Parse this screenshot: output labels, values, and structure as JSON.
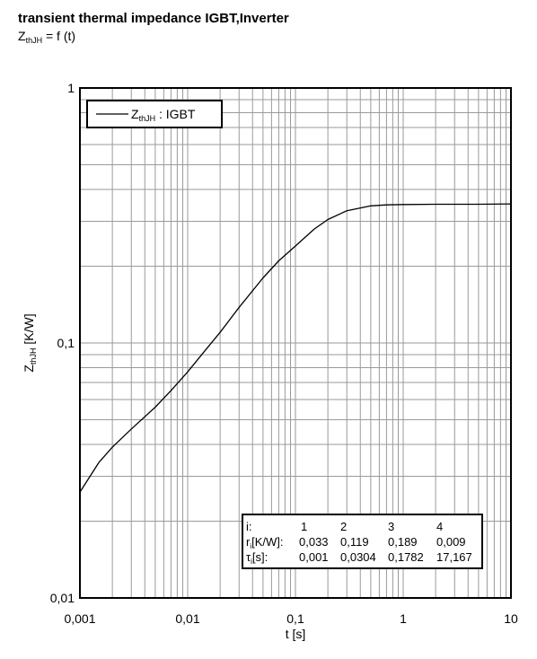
{
  "header": {
    "title": "transient thermal impedance IGBT,Inverter",
    "subtitle_main": "Z",
    "subtitle_sub": "thJH",
    "subtitle_rest": " = f (t)"
  },
  "chart_data": {
    "type": "line",
    "title": "transient thermal impedance IGBT,Inverter",
    "subtitle": "ZthJH = f (t)",
    "xlabel": "t [s]",
    "ylabel_main": "Z",
    "ylabel_sub": "thJH",
    "ylabel_rest": " [K/W]",
    "xscale": "log",
    "yscale": "log",
    "xlim": [
      0.001,
      10
    ],
    "ylim": [
      0.01,
      1
    ],
    "grid": true,
    "legend_position": "top-left",
    "x_tick_labels": [
      "0,001",
      "0,01",
      "0,1",
      "1",
      "10"
    ],
    "y_tick_labels": [
      "0,01",
      "0,1",
      "1"
    ],
    "series": [
      {
        "name_main": "Z",
        "name_sub": "thJH",
        "name_rest": " : IGBT",
        "color": "#000000",
        "x": [
          0.001,
          0.0015,
          0.002,
          0.003,
          0.005,
          0.007,
          0.01,
          0.015,
          0.02,
          0.03,
          0.05,
          0.07,
          0.1,
          0.15,
          0.2,
          0.3,
          0.5,
          0.7,
          1,
          2,
          5,
          10
        ],
        "y": [
          0.026,
          0.034,
          0.039,
          0.046,
          0.056,
          0.065,
          0.077,
          0.095,
          0.11,
          0.138,
          0.18,
          0.21,
          0.24,
          0.28,
          0.305,
          0.33,
          0.345,
          0.348,
          0.349,
          0.35,
          0.35,
          0.351
        ]
      }
    ],
    "rc_table": {
      "header_label": "i:",
      "indices": [
        "1",
        "2",
        "3",
        "4"
      ],
      "r_label_main": "r",
      "r_label_sub": "i",
      "r_label_rest": "[K/W]:",
      "r_values": [
        "0,033",
        "0,119",
        "0,189",
        "0,009"
      ],
      "tau_label_main": "τ",
      "tau_label_sub": "i",
      "tau_label_rest": "[s]:",
      "tau_values": [
        "0,001",
        "0,0304",
        "0,1782",
        "17,167"
      ]
    }
  }
}
